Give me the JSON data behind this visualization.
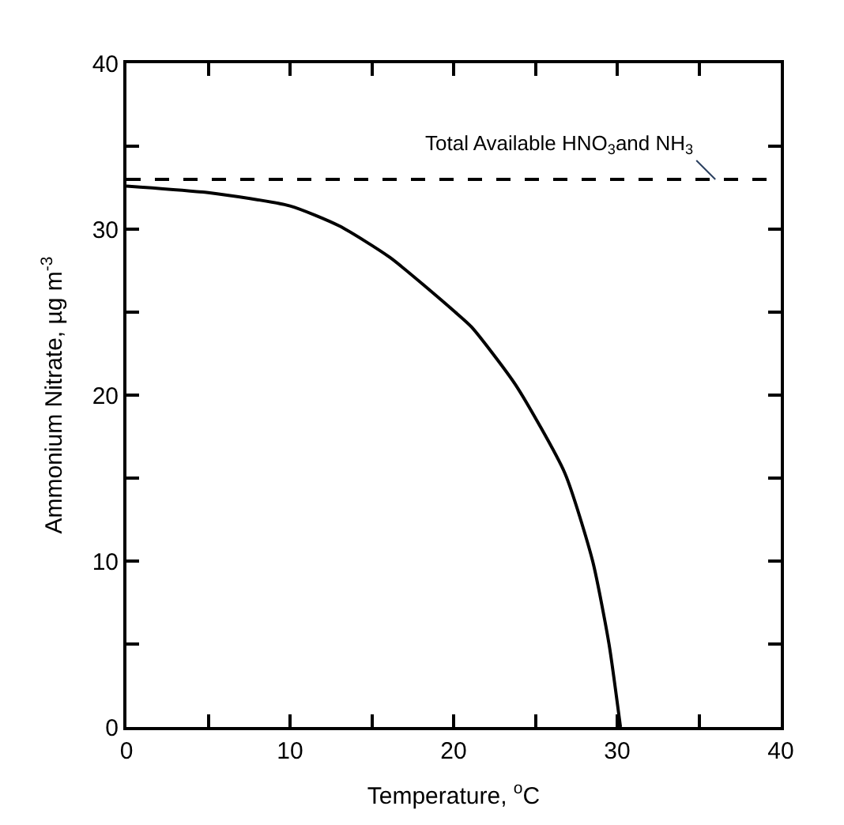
{
  "chart_data": {
    "type": "line",
    "xlabel": "Temperature, $^{o}$C",
    "ylabel": "Ammonium Nitrate, µg m$^{-3}$",
    "x": [
      0,
      5,
      10,
      13,
      16.1,
      20.1,
      21.1,
      23.8,
      26.8,
      28.5,
      29.5,
      30.2
    ],
    "series": [
      {
        "color": "#000000",
        "values": [
          32.6,
          32.2,
          31.4,
          30.2,
          28.3,
          25.0,
          24.1,
          20.6,
          15.3,
          10.0,
          5.0,
          0
        ]
      }
    ],
    "xlim": [
      0,
      40
    ],
    "ylim": [
      0,
      40
    ],
    "xticks": [
      0,
      {
        "value": 5,
        "label": null
      },
      10,
      {
        "value": 15,
        "label": null
      },
      20,
      {
        "value": 25,
        "label": null
      },
      30,
      {
        "value": 35,
        "label": null
      },
      40
    ],
    "yticks": [
      0,
      {
        "value": 5,
        "label": null
      },
      10,
      {
        "value": 15,
        "label": null
      },
      20,
      {
        "value": 25,
        "label": null
      },
      30,
      {
        "value": 35,
        "label": null
      },
      40
    ],
    "ref_lines": [
      {
        "axis": "y",
        "value": 33,
        "label": "Total Available HNO$_{3}$and NH$_{3}$",
        "color": "#000000",
        "line_style": "dashed"
      }
    ],
    "marker": "none",
    "line_style": "solid"
  }
}
